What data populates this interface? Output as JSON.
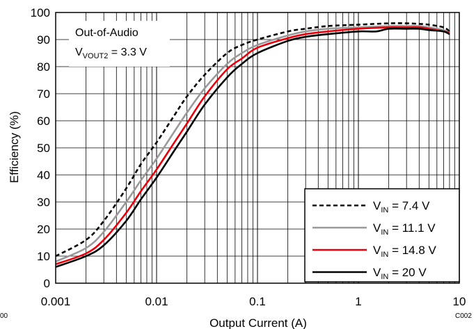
{
  "chart_data": {
    "type": "line",
    "xlabel": "Output Current (A)",
    "ylabel": "Efficiency (%)",
    "x_scale": "log",
    "xlim": [
      0.001,
      10
    ],
    "ylim": [
      0,
      100
    ],
    "grid": true,
    "legend_position": "bottom-right",
    "x_ticks": [
      "0.001",
      "0.01",
      "0.1",
      "1",
      "10"
    ],
    "y_ticks": [
      "0",
      "10",
      "20",
      "30",
      "40",
      "50",
      "60",
      "70",
      "80",
      "90",
      "100"
    ],
    "annotation": {
      "line1": "Out-of-Audio",
      "line2_main": "V",
      "line2_sub": "VOUT2",
      "line2_rest": " = 3.3 V"
    },
    "figure_code_right": "C002",
    "figure_code_left": "00",
    "series": [
      {
        "legend_main": "V",
        "legend_sub": "IN",
        "legend_rest": " = 7.4 V",
        "color": "#000000",
        "dash": "6,4",
        "x": [
          0.001,
          0.002,
          0.003,
          0.005,
          0.007,
          0.01,
          0.015,
          0.02,
          0.03,
          0.05,
          0.07,
          0.1,
          0.2,
          0.3,
          0.5,
          1,
          2,
          3,
          4,
          5,
          7,
          8
        ],
        "y": [
          10,
          16,
          23,
          35,
          44,
          52,
          62,
          69,
          77,
          85,
          88,
          90,
          93,
          94,
          95,
          95.5,
          96,
          96,
          95.8,
          95.5,
          94.5,
          93
        ]
      },
      {
        "legend_main": "V",
        "legend_sub": "IN",
        "legend_rest": " = 11.1 V",
        "color": "#999999",
        "dash": "",
        "x": [
          0.001,
          0.002,
          0.003,
          0.005,
          0.007,
          0.01,
          0.015,
          0.02,
          0.03,
          0.05,
          0.07,
          0.1,
          0.2,
          0.3,
          0.5,
          1,
          2,
          3,
          4,
          5,
          7,
          8
        ],
        "y": [
          8,
          13,
          19,
          30,
          38,
          46,
          56,
          63,
          72,
          81,
          85,
          88,
          91.5,
          93,
          94,
          94.5,
          95,
          95,
          95,
          94.5,
          93.5,
          92.5
        ]
      },
      {
        "legend_main": "V",
        "legend_sub": "IN",
        "legend_rest": " = 14.8 V",
        "color": "#e8000b",
        "dash": "",
        "x": [
          0.001,
          0.002,
          0.003,
          0.005,
          0.007,
          0.01,
          0.015,
          0.02,
          0.03,
          0.05,
          0.07,
          0.1,
          0.2,
          0.3,
          0.5,
          1,
          2,
          3,
          4,
          5,
          7,
          8
        ],
        "y": [
          7,
          11,
          16,
          26,
          34,
          42,
          52,
          59,
          69,
          79,
          83,
          87,
          90.5,
          92,
          93,
          94,
          94.5,
          94.5,
          94.5,
          94,
          93,
          92.5
        ]
      },
      {
        "legend_main": "V",
        "legend_sub": "IN",
        "legend_rest": " = 20 V",
        "color": "#000000",
        "dash": "",
        "x": [
          0.001,
          0.002,
          0.003,
          0.005,
          0.007,
          0.01,
          0.015,
          0.02,
          0.03,
          0.05,
          0.07,
          0.1,
          0.2,
          0.3,
          0.5,
          1,
          1.5,
          2,
          3,
          4,
          5,
          7,
          8
        ],
        "y": [
          6,
          10,
          14,
          23,
          31,
          39,
          49,
          56,
          66,
          76,
          81,
          85,
          89.5,
          91,
          92,
          93,
          93,
          94,
          94,
          94,
          93.5,
          93,
          92
        ]
      }
    ]
  }
}
